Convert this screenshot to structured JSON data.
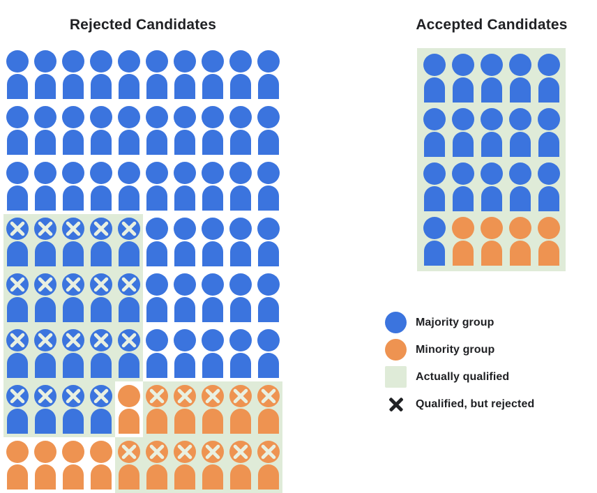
{
  "rejected": {
    "title": "Rejected Candidates",
    "columns": 10,
    "rows": [
      [
        "b",
        "b",
        "b",
        "b",
        "b",
        "b",
        "b",
        "b",
        "b",
        "b"
      ],
      [
        "b",
        "b",
        "b",
        "b",
        "b",
        "b",
        "b",
        "b",
        "b",
        "b"
      ],
      [
        "b",
        "b",
        "b",
        "b",
        "b",
        "b",
        "b",
        "b",
        "b",
        "b"
      ],
      [
        "B",
        "B",
        "B",
        "B",
        "B",
        "b",
        "b",
        "b",
        "b",
        "b"
      ],
      [
        "B",
        "B",
        "B",
        "B",
        "B",
        "b",
        "b",
        "b",
        "b",
        "b"
      ],
      [
        "B",
        "B",
        "B",
        "B",
        "B",
        "b",
        "b",
        "b",
        "b",
        "b"
      ],
      [
        "B",
        "B",
        "B",
        "B",
        "o",
        "O",
        "O",
        "O",
        "O",
        "O"
      ],
      [
        "o",
        "o",
        "o",
        "o",
        "O",
        "O",
        "O",
        "O",
        "O",
        "O"
      ]
    ]
  },
  "accepted": {
    "title": "Accepted Candidates",
    "columns": 5,
    "rows": [
      [
        "q",
        "q",
        "q",
        "q",
        "q"
      ],
      [
        "q",
        "q",
        "q",
        "q",
        "q"
      ],
      [
        "q",
        "q",
        "q",
        "q",
        "q"
      ],
      [
        "q",
        "p",
        "p",
        "p",
        "p"
      ]
    ]
  },
  "cell_codes": {
    "b": {
      "group": "majority",
      "qualified": false,
      "x": false
    },
    "o": {
      "group": "minority",
      "qualified": false,
      "x": false
    },
    "B": {
      "group": "majority",
      "qualified": true,
      "x": true
    },
    "O": {
      "group": "minority",
      "qualified": true,
      "x": true
    },
    "q": {
      "group": "majority",
      "qualified": true,
      "x": false
    },
    "p": {
      "group": "minority",
      "qualified": true,
      "x": false
    }
  },
  "legend": {
    "items": [
      {
        "swatch": "majority-circle",
        "label": "Majority group"
      },
      {
        "swatch": "minority-circle",
        "label": "Minority group"
      },
      {
        "swatch": "qualified-square",
        "label": "Actually qualified"
      },
      {
        "swatch": "x-mark",
        "label": "Qualified, but rejected"
      }
    ]
  },
  "colors": {
    "majority_blue": "#3B74DE",
    "minority_orange": "#EE9351",
    "qualified_green": "#DFEBD8",
    "x_on_icon": "#E9F0E1",
    "legend_x_black": "#202124",
    "text": "#202124"
  },
  "counts": {
    "rejected": {
      "majority_total": 64,
      "majority_qualified_but_rejected": 19,
      "minority_total": 16,
      "minority_qualified_but_rejected": 11
    },
    "accepted": {
      "majority_total": 16,
      "minority_total": 4
    }
  }
}
